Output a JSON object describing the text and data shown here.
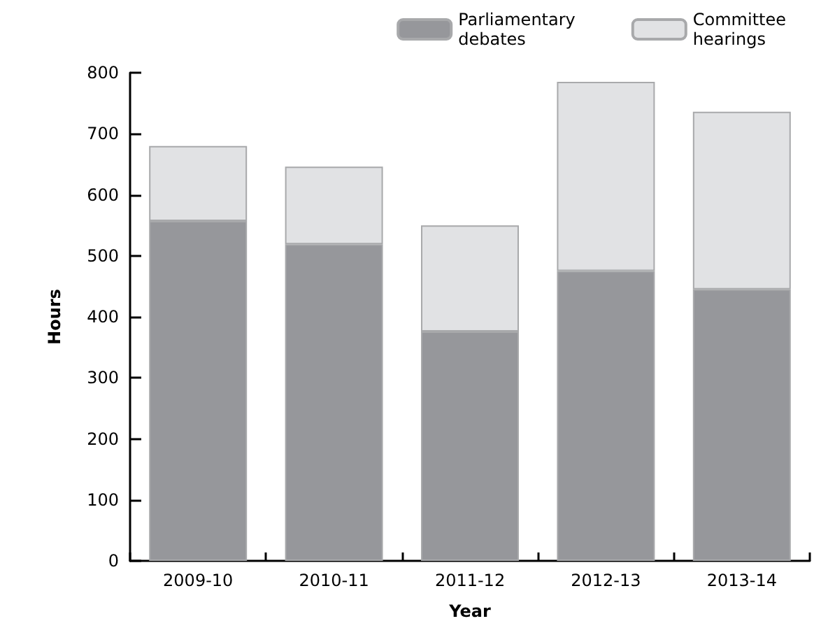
{
  "chart_data": {
    "type": "bar",
    "stacked": true,
    "xlabel": "Year",
    "ylabel": "Hours",
    "categories": [
      "2009-10",
      "2010-11",
      "2011-12",
      "2012-13",
      "2013-14"
    ],
    "series": [
      {
        "name": "Parliamentary debates",
        "color": "#96979b",
        "values": [
          557,
          519,
          376,
          475,
          445
        ]
      },
      {
        "name": "Committee hearings",
        "color": "#e1e2e4",
        "values": [
          123,
          127,
          174,
          310,
          291
        ]
      }
    ],
    "ylim": [
      0,
      800
    ],
    "yticks": [
      0,
      100,
      200,
      300,
      400,
      500,
      600,
      700,
      800
    ],
    "grid": false,
    "legend": "top right"
  }
}
